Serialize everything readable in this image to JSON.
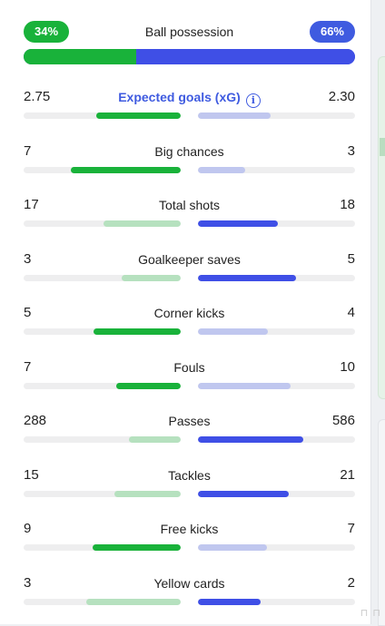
{
  "possession": {
    "title": "Ball possession",
    "home_label": "34%",
    "away_label": "66%",
    "home_share": 0.34
  },
  "colors": {
    "home": "#19b23a",
    "home_weak": "#b6e1bf",
    "away": "#3f4fe6",
    "away_weak": "#c0c7ef",
    "link": "#3f5be0"
  },
  "stats": [
    {
      "label": "Expected goals (xG)",
      "home": "2.75",
      "away": "2.30",
      "home_fill": 0.54,
      "away_fill": 0.46,
      "home_strong": true,
      "away_strong": false,
      "info_icon": "info-icon",
      "link": true
    },
    {
      "label": "Big chances",
      "home": "7",
      "away": "3",
      "home_fill": 0.7,
      "away_fill": 0.3,
      "home_strong": true,
      "away_strong": false
    },
    {
      "label": "Total shots",
      "home": "17",
      "away": "18",
      "home_fill": 0.49,
      "away_fill": 0.51,
      "home_strong": false,
      "away_strong": true
    },
    {
      "label": "Goalkeeper saves",
      "home": "3",
      "away": "5",
      "home_fill": 0.375,
      "away_fill": 0.625,
      "home_strong": false,
      "away_strong": true
    },
    {
      "label": "Corner kicks",
      "home": "5",
      "away": "4",
      "home_fill": 0.556,
      "away_fill": 0.444,
      "home_strong": true,
      "away_strong": false
    },
    {
      "label": "Fouls",
      "home": "7",
      "away": "10",
      "home_fill": 0.41,
      "away_fill": 0.59,
      "home_strong": true,
      "away_strong": false
    },
    {
      "label": "Passes",
      "home": "288",
      "away": "586",
      "home_fill": 0.33,
      "away_fill": 0.67,
      "home_strong": false,
      "away_strong": true
    },
    {
      "label": "Tackles",
      "home": "15",
      "away": "21",
      "home_fill": 0.42,
      "away_fill": 0.58,
      "home_strong": false,
      "away_strong": true
    },
    {
      "label": "Free kicks",
      "home": "9",
      "away": "7",
      "home_fill": 0.56,
      "away_fill": 0.44,
      "home_strong": true,
      "away_strong": false
    },
    {
      "label": "Yellow cards",
      "home": "3",
      "away": "2",
      "home_fill": 0.6,
      "away_fill": 0.4,
      "home_strong": false,
      "away_strong": true
    }
  ]
}
